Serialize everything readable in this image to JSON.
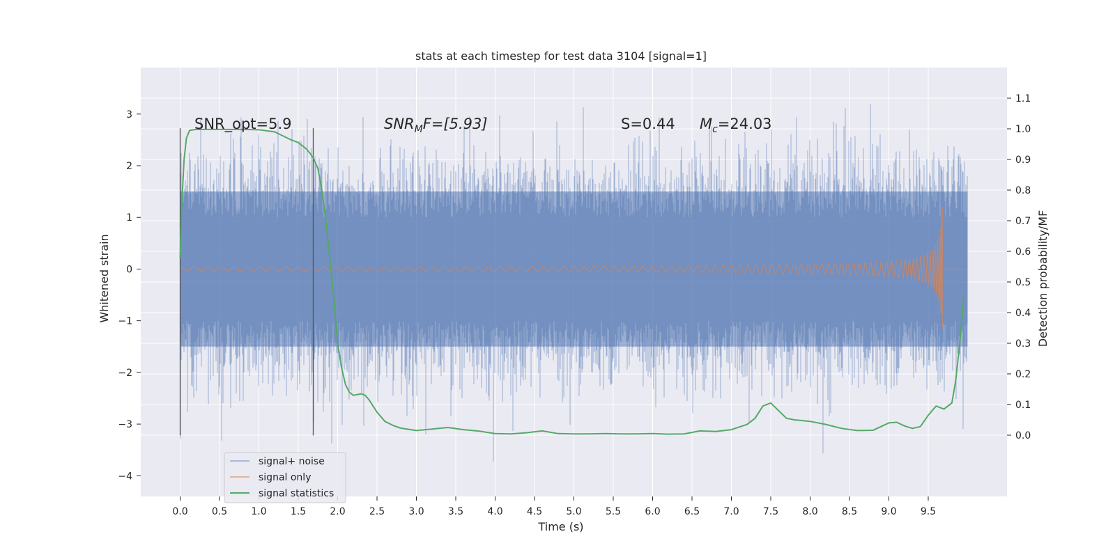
{
  "chart_data": {
    "type": "line",
    "title": "stats at each timestep for test data 3104 [signal=1]",
    "xlabel": "Time (s)",
    "ylabel": "Whitened strain",
    "ylabel_right": "Detection probability/MF",
    "xlim": [
      -0.5,
      10.5
    ],
    "ylim": [
      -4.4,
      3.9
    ],
    "ylim_right": [
      -0.2,
      1.2
    ],
    "x_ticks": [
      0.0,
      0.5,
      1.0,
      1.5,
      2.0,
      2.5,
      3.0,
      3.5,
      4.0,
      4.5,
      5.0,
      5.5,
      6.0,
      6.5,
      7.0,
      7.5,
      8.0,
      8.5,
      9.0,
      9.5
    ],
    "x_tick_labels": [
      "0.0",
      "0.5",
      "1.0",
      "1.5",
      "2.0",
      "2.5",
      "3.0",
      "3.5",
      "4.0",
      "4.5",
      "5.0",
      "5.5",
      "6.0",
      "6.5",
      "7.0",
      "7.5",
      "8.0",
      "8.5",
      "9.0",
      "9.5"
    ],
    "y_ticks": [
      3,
      2,
      1,
      0,
      -1,
      -2,
      -3,
      -4
    ],
    "y_tick_labels": [
      "3",
      "2",
      "1",
      "0",
      "−1",
      "−2",
      "−3",
      "−4"
    ],
    "y_right_ticks": [
      1.1,
      1.0,
      0.9,
      0.8,
      0.7,
      0.6,
      0.5,
      0.4,
      0.3,
      0.2,
      0.1,
      0.0
    ],
    "y_right_tick_labels": [
      "1.1",
      "1.0",
      "0.9",
      "0.8",
      "0.7",
      "0.6",
      "0.5",
      "0.4",
      "0.3",
      "0.2",
      "0.1",
      "0.0"
    ],
    "grid": true,
    "legend_position": "lower-left",
    "annotations": {
      "snr_opt": "SNR_opt=5.9",
      "snr_mf_base": "SNR",
      "snr_mf_sub": "M",
      "snr_mf_rest": "F=[5.93]",
      "s_val": "S=0.44",
      "mc_base": "M",
      "mc_sub": "c",
      "mc_rest": "=24.03"
    },
    "vertical_markers": [
      0.0,
      1.69
    ],
    "series": [
      {
        "name": "signal+ noise",
        "color": "#4c72b0",
        "x_range": [
          0.0,
          10.0
        ],
        "envelope_typical": [
          -1.5,
          1.5
        ],
        "peak_max": 3.55,
        "peak_min": -4.05
      },
      {
        "name": "signal only",
        "color": "#dd8452",
        "x_range": [
          0.0,
          9.68
        ],
        "chirp_amplitude_max": 1.2,
        "chirp_min": -1.15
      },
      {
        "name": "signal statistics",
        "color": "#55a868",
        "axis": "right",
        "x": [
          0.0,
          0.02,
          0.05,
          0.08,
          0.12,
          0.2,
          0.4,
          0.6,
          0.8,
          1.0,
          1.2,
          1.4,
          1.5,
          1.6,
          1.65,
          1.7,
          1.75,
          1.8,
          1.85,
          1.9,
          1.95,
          2.0,
          2.05,
          2.1,
          2.15,
          2.2,
          2.3,
          2.35,
          2.4,
          2.5,
          2.6,
          2.7,
          2.8,
          3.0,
          3.2,
          3.4,
          3.6,
          3.8,
          4.0,
          4.2,
          4.4,
          4.6,
          4.8,
          5.0,
          5.2,
          5.4,
          5.6,
          5.8,
          6.0,
          6.2,
          6.4,
          6.6,
          6.8,
          7.0,
          7.2,
          7.3,
          7.4,
          7.5,
          7.6,
          7.7,
          7.8,
          8.0,
          8.2,
          8.4,
          8.6,
          8.8,
          9.0,
          9.1,
          9.2,
          9.3,
          9.4,
          9.5,
          9.6,
          9.7,
          9.8,
          9.85,
          9.9,
          9.95
        ],
        "y": [
          0.58,
          0.75,
          0.9,
          0.97,
          0.995,
          0.998,
          0.998,
          0.998,
          0.998,
          0.997,
          0.99,
          0.965,
          0.955,
          0.935,
          0.92,
          0.9,
          0.87,
          0.8,
          0.7,
          0.58,
          0.45,
          0.3,
          0.22,
          0.165,
          0.14,
          0.13,
          0.135,
          0.13,
          0.115,
          0.075,
          0.045,
          0.032,
          0.023,
          0.015,
          0.02,
          0.025,
          0.018,
          0.013,
          0.005,
          0.004,
          0.008,
          0.014,
          0.005,
          0.004,
          0.004,
          0.005,
          0.004,
          0.004,
          0.005,
          0.003,
          0.004,
          0.014,
          0.012,
          0.018,
          0.035,
          0.055,
          0.095,
          0.105,
          0.08,
          0.055,
          0.05,
          0.045,
          0.035,
          0.022,
          0.015,
          0.016,
          0.04,
          0.042,
          0.03,
          0.022,
          0.028,
          0.065,
          0.095,
          0.085,
          0.105,
          0.18,
          0.3,
          0.45
        ]
      }
    ]
  }
}
